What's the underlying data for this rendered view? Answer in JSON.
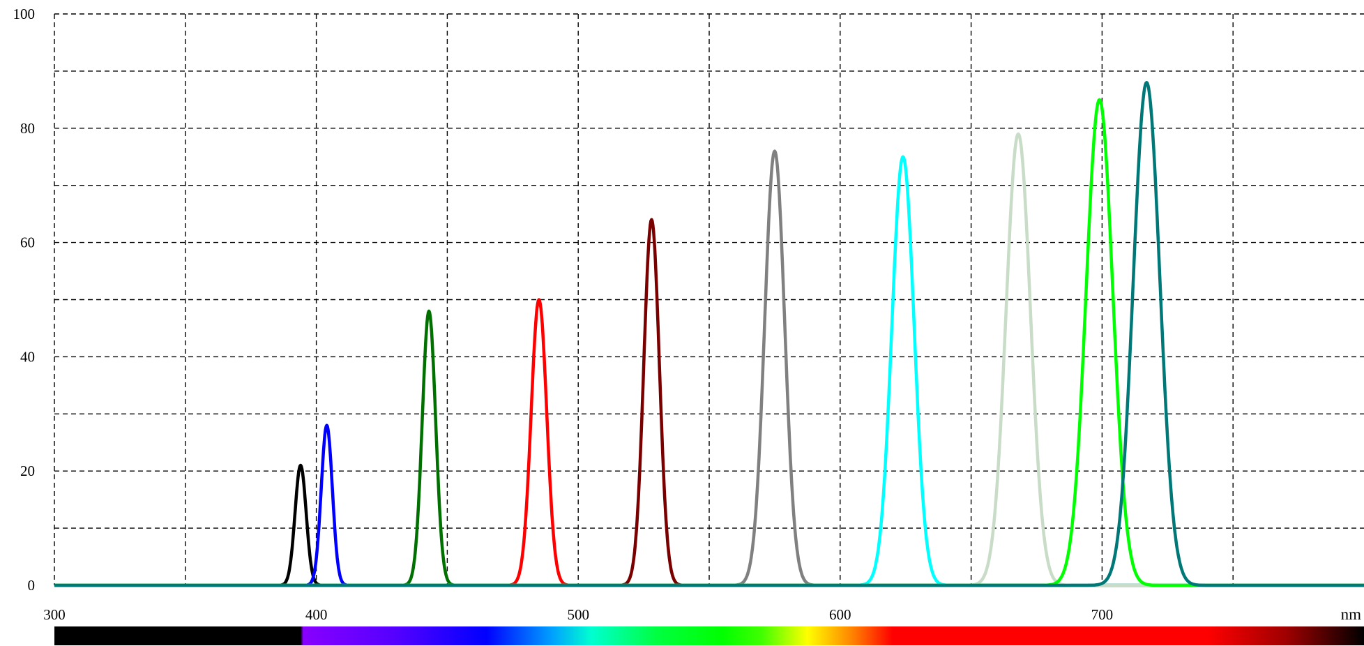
{
  "chart_data": {
    "type": "line",
    "title": "",
    "xlabel": "nm",
    "ylabel": "",
    "xlim": [
      300,
      800
    ],
    "ylim": [
      0,
      100
    ],
    "x_ticks": [
      300,
      400,
      500,
      600,
      700
    ],
    "y_ticks": [
      0,
      20,
      40,
      60,
      80,
      100
    ],
    "grid": true,
    "x_grid_step": 50,
    "y_grid_step": 10,
    "spectrum_bar": true,
    "series": [
      {
        "color": "#000000",
        "center": 394,
        "peak": 21,
        "fwhm": 5
      },
      {
        "color": "#0000ff",
        "center": 404,
        "peak": 28,
        "fwhm": 5
      },
      {
        "color": "#007000",
        "center": 443,
        "peak": 48,
        "fwhm": 6
      },
      {
        "color": "#ff0000",
        "center": 485,
        "peak": 50,
        "fwhm": 7
      },
      {
        "color": "#7a0000",
        "center": 528,
        "peak": 64,
        "fwhm": 7
      },
      {
        "color": "#808080",
        "center": 575,
        "peak": 76,
        "fwhm": 9
      },
      {
        "color": "#00ffff",
        "center": 624,
        "peak": 75,
        "fwhm": 10
      },
      {
        "color": "#c8dcc8",
        "center": 668,
        "peak": 79,
        "fwhm": 11
      },
      {
        "color": "#00ff00",
        "center": 699,
        "peak": 85,
        "fwhm": 12
      },
      {
        "color": "#007878",
        "center": 717,
        "peak": 88,
        "fwhm": 12
      }
    ]
  }
}
